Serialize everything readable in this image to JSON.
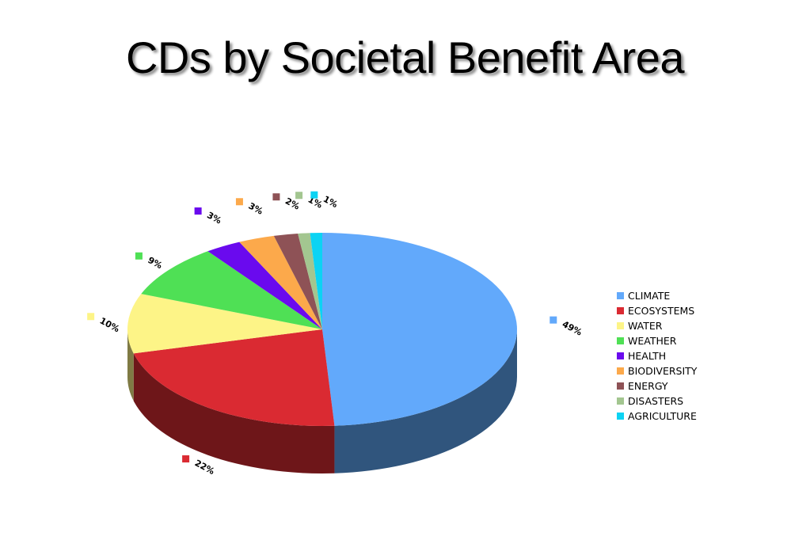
{
  "chart_data": {
    "type": "pie",
    "title": "CDs by Societal Benefit Area",
    "three_d": true,
    "legend_position": "right",
    "slices": [
      {
        "label": "CLIMATE",
        "value": 49,
        "display": "49%",
        "color": "#62a9fb",
        "side_color": "#30557d"
      },
      {
        "label": "ECOSYSTEMS",
        "value": 22,
        "display": "22%",
        "color": "#da2a32",
        "side_color": "#6e1619"
      },
      {
        "label": "WATER",
        "value": 10,
        "display": "10%",
        "color": "#fdf487",
        "side_color": "#7f7a44"
      },
      {
        "label": "WEATHER",
        "value": 9,
        "display": "9%",
        "color": "#4fe055",
        "side_color": "#28702a"
      },
      {
        "label": "HEALTH",
        "value": 3,
        "display": "3%",
        "color": "#6a0aee",
        "side_color": "#350577"
      },
      {
        "label": "BIODIVERSITY",
        "value": 3,
        "display": "3%",
        "color": "#fca94b",
        "side_color": "#7e5426"
      },
      {
        "label": "ENERGY",
        "value": 2,
        "display": "2%",
        "color": "#8e5256",
        "side_color": "#47292b"
      },
      {
        "label": "DISASTERS",
        "value": 1,
        "display": "1%",
        "color": "#a3c690",
        "side_color": "#526348"
      },
      {
        "label": "AGRICULTURE",
        "value": 1,
        "display": "1%",
        "color": "#0cd3f3",
        "side_color": "#066a7a"
      }
    ]
  }
}
